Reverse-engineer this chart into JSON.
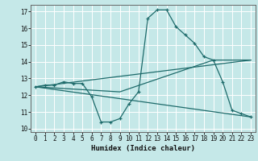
{
  "xlabel": "Humidex (Indice chaleur)",
  "xlim": [
    -0.5,
    23.5
  ],
  "ylim": [
    9.8,
    17.4
  ],
  "yticks": [
    10,
    11,
    12,
    13,
    14,
    15,
    16,
    17
  ],
  "xticks": [
    0,
    1,
    2,
    3,
    4,
    5,
    6,
    7,
    8,
    9,
    10,
    11,
    12,
    13,
    14,
    15,
    16,
    17,
    18,
    19,
    20,
    21,
    22,
    23
  ],
  "bg_color": "#c5e8e8",
  "line_color": "#1e6b6b",
  "grid_color": "#ffffff",
  "main_curve": {
    "x": [
      0,
      1,
      2,
      3,
      4,
      5,
      6,
      7,
      8,
      9,
      10,
      11,
      12,
      13,
      14,
      15,
      16,
      17,
      18,
      19,
      20,
      21,
      22,
      23
    ],
    "y": [
      12.5,
      12.6,
      12.6,
      12.8,
      12.7,
      12.7,
      11.9,
      10.4,
      10.4,
      10.6,
      11.5,
      12.2,
      16.6,
      17.1,
      17.1,
      16.1,
      15.6,
      15.1,
      14.3,
      14.1,
      12.8,
      11.1,
      10.9,
      10.7
    ]
  },
  "line1": {
    "x": [
      0,
      23
    ],
    "y": [
      12.5,
      14.1
    ]
  },
  "line2": {
    "x": [
      0,
      23
    ],
    "y": [
      12.5,
      10.7
    ]
  },
  "line3": {
    "x": [
      0,
      9,
      19,
      23
    ],
    "y": [
      12.5,
      12.2,
      14.1,
      14.1
    ]
  }
}
